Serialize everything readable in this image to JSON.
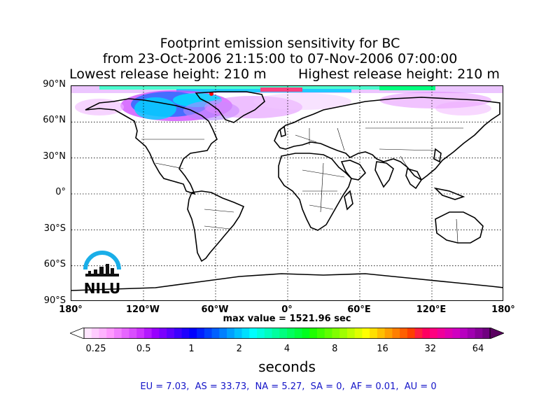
{
  "title": {
    "line1": "Footprint emission sensitivity for BC",
    "line2": "from 23-Oct-2006 21:15:00 to 07-Nov-2006 07:00:00",
    "lowest_release": "Lowest release height: 210 m",
    "highest_release": "Highest release height: 210 m"
  },
  "map": {
    "projection": "cylindrical",
    "lat_labels": [
      "90°N",
      "60°N",
      "30°N",
      "0°",
      "30°S",
      "60°S",
      "90°S"
    ],
    "lon_labels": [
      "180°",
      "120°W",
      "60°W",
      "0°",
      "60°E",
      "120°E",
      "180°"
    ],
    "gridlines": "dotted",
    "logo_text": "NILU"
  },
  "max_value": "max value = 1521.96 sec",
  "colorbar": {
    "ticks": [
      "0.25",
      "0.5",
      "1",
      "2",
      "4",
      "8",
      "16",
      "32",
      "64"
    ],
    "unit": "seconds",
    "extend": "both",
    "colors": [
      "#ffe6ff",
      "#ffccff",
      "#ffb3ff",
      "#ff99ff",
      "#f280ff",
      "#e666ff",
      "#d94dff",
      "#cc33ff",
      "#b319ff",
      "#9900ff",
      "#7a00ff",
      "#5c00ff",
      "#3d00ff",
      "#1f00ff",
      "#0000ff",
      "#0020ff",
      "#0040ff",
      "#0060ff",
      "#0080ff",
      "#00a0ff",
      "#00c0ff",
      "#00dfff",
      "#00ffff",
      "#00ffdf",
      "#00ffbf",
      "#00ff9f",
      "#00ff7f",
      "#00ff5f",
      "#00ff3f",
      "#00ff1f",
      "#20ff00",
      "#40ff00",
      "#60ff00",
      "#80ff00",
      "#a0ff00",
      "#c0ff00",
      "#dfff00",
      "#ffff00",
      "#ffdf00",
      "#ffbf00",
      "#ff9f00",
      "#ff7f00",
      "#ff5f00",
      "#ff3f00",
      "#ff1f3f",
      "#ff0060",
      "#ff0080",
      "#f0009a",
      "#e000b0",
      "#d000c0",
      "#b800c0",
      "#a000b0",
      "#880098",
      "#700080"
    ],
    "under_color": "#ffffff",
    "over_color": "#5a0060"
  },
  "region_stats": "EU = 7.03,  AS = 33.73,  NA = 5.27,  SA = 0,  AF = 0.01,  AU = 0"
}
